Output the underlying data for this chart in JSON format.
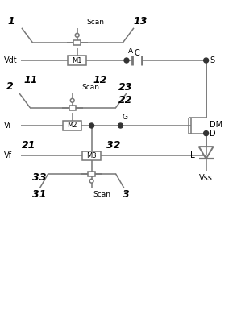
{
  "bg_color": "#ffffff",
  "lc": "#777777",
  "tc": "#000000",
  "figsize": [
    2.99,
    4.11
  ],
  "dpi": 100,
  "xlim": [
    0,
    10
  ],
  "ylim": [
    0,
    13.7
  ]
}
